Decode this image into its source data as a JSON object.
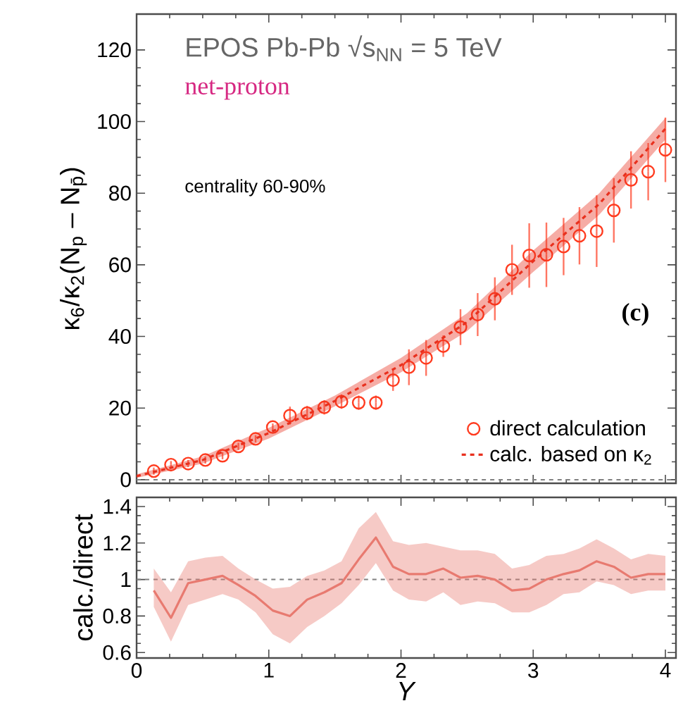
{
  "chart_data": [
    {
      "type": "scatter",
      "title": "EPOS Pb-Pb √s$_{NN}$ = 5 TeV",
      "subtitle": "net-proton",
      "ylabel": "κ$_{6}$/κ$_{2}$(N$_{p}$ – N$_{p̄}$)",
      "annotations": [
        "centrality 60-90%",
        "(c)"
      ],
      "xlim": [
        0,
        4.08
      ],
      "ylim": [
        -1,
        130
      ],
      "xticks": [
        0,
        1,
        2,
        3,
        4
      ],
      "yticks": [
        0,
        20,
        40,
        60,
        80,
        100,
        120
      ],
      "tick_labels": "y",
      "legend": "bottom right",
      "ref_lines": [
        {
          "axis": "y",
          "value": 0,
          "color": "#808080",
          "line_style": "dashed"
        }
      ],
      "series": [
        {
          "name": "direct calculation",
          "marker": "circle",
          "color": "#ff3b1f",
          "x": [
            0.13,
            0.26,
            0.39,
            0.52,
            0.65,
            0.77,
            0.9,
            1.03,
            1.16,
            1.29,
            1.42,
            1.55,
            1.68,
            1.81,
            1.94,
            2.06,
            2.19,
            2.32,
            2.45,
            2.58,
            2.71,
            2.84,
            2.97,
            3.1,
            3.23,
            3.35,
            3.48,
            3.61,
            3.74,
            3.87,
            4.0
          ],
          "values": [
            2.4,
            4.2,
            4.5,
            5.5,
            6.7,
            9.3,
            11.4,
            14.7,
            17.9,
            18.6,
            20.2,
            21.8,
            21.5,
            21.5,
            27.8,
            31.4,
            34,
            37.3,
            42.6,
            46.1,
            50.5,
            58.6,
            62.6,
            62.8,
            65.1,
            68.1,
            69.4,
            75.2,
            83.7,
            86,
            92.1
          ],
          "errors": [
            1,
            1,
            1,
            1,
            1,
            1,
            1,
            1,
            2.5,
            2,
            2,
            2,
            2,
            2,
            3,
            5,
            5,
            3,
            5,
            6,
            6,
            7,
            9,
            9,
            8,
            8,
            10,
            9,
            8,
            8,
            9
          ]
        },
        {
          "name": "calc. based on κ$_{2}$",
          "type": "line",
          "line_style": "dashed",
          "color": "#e8301e",
          "x": [
            0,
            0.5,
            1,
            1.5,
            2,
            2.5,
            3,
            3.5,
            4
          ],
          "values": [
            1,
            5.5,
            13,
            22,
            32,
            44,
            61,
            77,
            98
          ],
          "lower": [
            0.5,
            4.5,
            11.5,
            20.5,
            30,
            41.5,
            58,
            74,
            95
          ],
          "upper": [
            1.5,
            6.5,
            14.5,
            23.5,
            34,
            46.5,
            64,
            80,
            101
          ]
        }
      ]
    },
    {
      "type": "line",
      "ylabel": "calc./direct",
      "xlabel": "*Y*",
      "xlim": [
        0,
        4.08
      ],
      "ylim": [
        0.57,
        1.45
      ],
      "xticks": [
        0,
        1,
        2,
        3,
        4
      ],
      "yticks": [
        {
          "value": 0.6,
          "label": "0.6"
        },
        {
          "value": 0.8,
          "label": "0.8"
        },
        {
          "value": 1,
          "label": "1"
        },
        {
          "value": 1.2,
          "label": "1.2"
        },
        {
          "value": 1.4,
          "label": "1.4"
        }
      ],
      "ref_lines": [
        {
          "axis": "y",
          "value": 1,
          "color": "#808080",
          "line_style": "dashed"
        }
      ],
      "series": [
        {
          "line_style": "solid",
          "color": "#e87a70",
          "x": [
            0.13,
            0.26,
            0.39,
            0.52,
            0.65,
            0.77,
            0.9,
            1.03,
            1.16,
            1.29,
            1.42,
            1.55,
            1.68,
            1.81,
            1.94,
            2.06,
            2.19,
            2.32,
            2.45,
            2.58,
            2.71,
            2.84,
            2.97,
            3.1,
            3.23,
            3.35,
            3.48,
            3.61,
            3.74,
            3.87,
            4.0
          ],
          "values": [
            0.94,
            0.79,
            0.98,
            1.0,
            1.02,
            0.97,
            0.91,
            0.83,
            0.8,
            0.89,
            0.93,
            0.98,
            1.11,
            1.23,
            1.07,
            1.03,
            1.03,
            1.06,
            1.01,
            1.02,
            1.0,
            0.94,
            0.95,
            1.0,
            1.03,
            1.05,
            1.1,
            1.07,
            1.01,
            1.03,
            1.03
          ],
          "upper": [
            1.06,
            0.93,
            1.1,
            1.12,
            1.13,
            1.06,
            1.0,
            0.95,
            0.96,
            1.02,
            1.05,
            1.1,
            1.28,
            1.37,
            1.21,
            1.19,
            1.2,
            1.18,
            1.16,
            1.16,
            1.14,
            1.06,
            1.08,
            1.13,
            1.14,
            1.17,
            1.22,
            1.17,
            1.11,
            1.14,
            1.13
          ],
          "lower": [
            0.85,
            0.66,
            0.86,
            0.89,
            0.92,
            0.89,
            0.82,
            0.7,
            0.65,
            0.74,
            0.8,
            0.87,
            0.97,
            1.09,
            0.94,
            0.89,
            0.88,
            0.93,
            0.86,
            0.88,
            0.87,
            0.82,
            0.82,
            0.86,
            0.92,
            0.93,
            0.99,
            0.97,
            0.92,
            0.94,
            0.94
          ]
        }
      ]
    }
  ]
}
